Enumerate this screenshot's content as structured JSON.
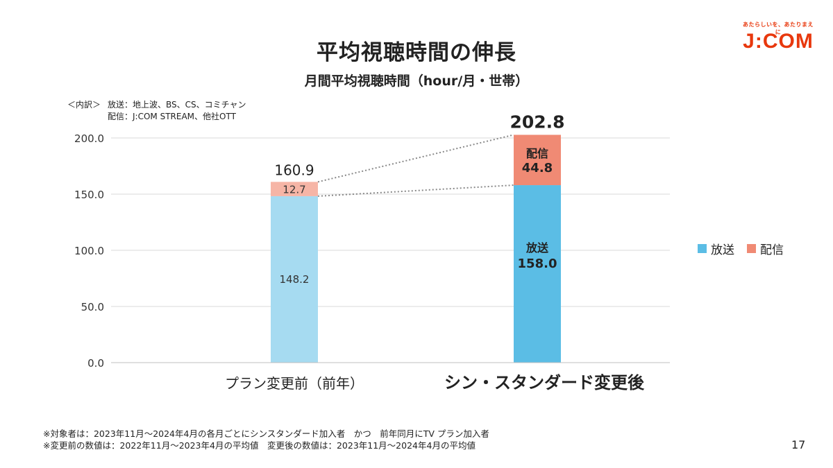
{
  "slide": {
    "title": "平均視聴時間の伸長",
    "subtitle": "月間平均視聴時間（hour/月・世帯）",
    "breakdown_label": "＜内訳＞",
    "breakdown_line1": "放送：地上波、BS、CS、コミチャン",
    "breakdown_line2": "配信：J:COM STREAM、他社OTT",
    "brand_tagline": "あたらしいを、あたりまえに",
    "brand_logo": "J:COM",
    "note1": "※対象者は：2023年11月～2024年4月の各月ごとにシンスタンダード加入者　かつ　前年同月にTV プラン加入者",
    "note2": "※変更前の数値は：2022年11月～2023年4月の平均値　変更後の数値は：2023年11月～2024年4月の平均値",
    "page_number": "17"
  },
  "chart_data": {
    "type": "bar",
    "stacked": true,
    "categories": [
      "プラン変更前（前年）",
      "シン・スタンダード変更後"
    ],
    "series": [
      {
        "name": "放送",
        "values": [
          148.2,
          158.0
        ],
        "labels": [
          "148.2",
          "158.0"
        ],
        "color_before": "#a6dbf1",
        "color": "#5bbde5"
      },
      {
        "name": "配信",
        "values": [
          12.7,
          44.8
        ],
        "labels": [
          "12.7",
          "44.8"
        ],
        "color_before": "#f6b5a6",
        "color": "#f08a74"
      }
    ],
    "totals": [
      160.9,
      202.8
    ],
    "total_labels": [
      "160.9",
      "202.8"
    ],
    "y_ticks": [
      "0.0",
      "50.0",
      "100.0",
      "150.0",
      "200.0"
    ],
    "y_tick_values": [
      0,
      50,
      100,
      150,
      200
    ],
    "ylim": [
      0,
      200
    ],
    "grid": true,
    "legend_position": "right",
    "connector_style": "dotted"
  }
}
